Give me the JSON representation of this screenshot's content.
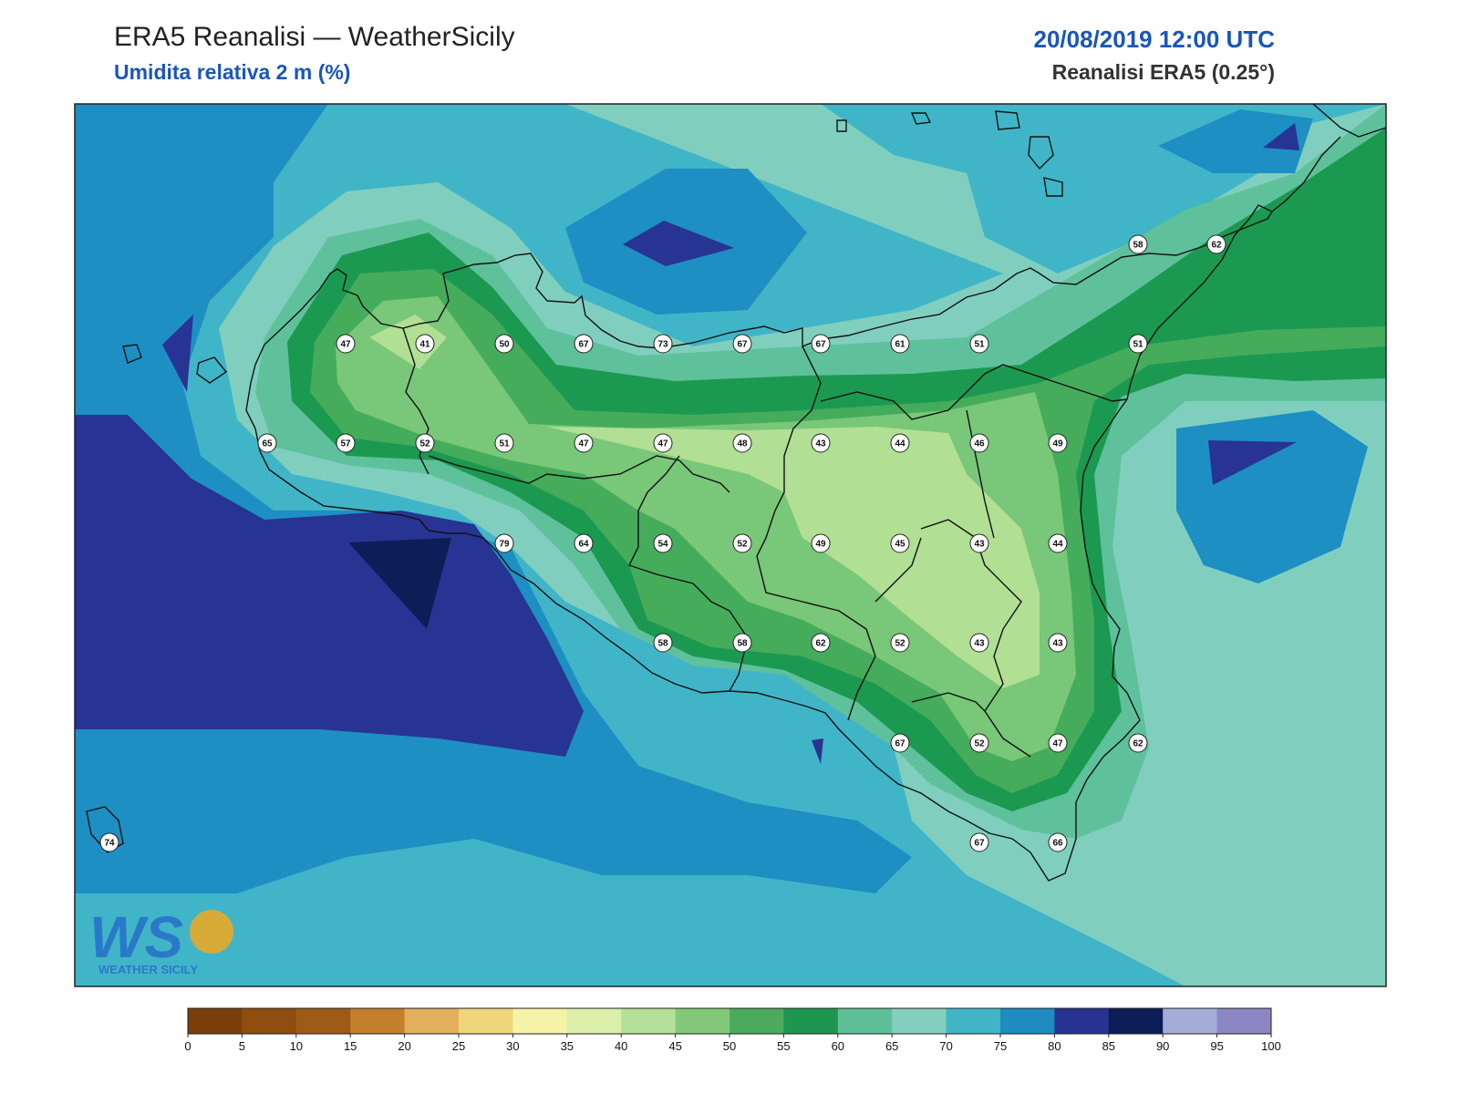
{
  "header": {
    "title": "ERA5 Reanalisi — WeatherSicily",
    "subtitle": "Umidita relativa 2 m (%)",
    "datetime": "20/08/2019 12:00 UTC",
    "source": "Reanalisi ERA5 (0.25°)"
  },
  "logo": {
    "letters": "WS",
    "text": "WEATHER SICILY"
  },
  "colorbar": {
    "ticks": [
      "0",
      "5",
      "10",
      "15",
      "20",
      "25",
      "30",
      "35",
      "40",
      "45",
      "50",
      "55",
      "60",
      "65",
      "70",
      "75",
      "80",
      "85",
      "90",
      "95",
      "100"
    ],
    "colors": [
      "#7a3f0a",
      "#8f4d0f",
      "#9e5a17",
      "#c47f2c",
      "#e0b05c",
      "#f0d67a",
      "#f5f3a8",
      "#dcefab",
      "#b5e09a",
      "#84c97a",
      "#4caa5c",
      "#1e9650",
      "#5fbf98",
      "#83cfbd",
      "#41b5c6",
      "#1e8cc0",
      "#263393",
      "#0b1c57",
      "#a3add8",
      "#8c86c2"
    ]
  },
  "map_colors": {
    "c45": "#b1df94",
    "c50": "#79c779",
    "c55": "#45ac5c",
    "c60": "#1c9950",
    "c65": "#5ec19c",
    "c70": "#80cfbe",
    "c75": "#41b5c8",
    "c80": "#1d8fc3",
    "c85": "#273494",
    "c90": "#0b1e58",
    "coast": "#111111"
  },
  "stations": [
    {
      "v": "47"
    },
    {
      "v": "41"
    },
    {
      "v": "50"
    },
    {
      "v": "67"
    },
    {
      "v": "73"
    },
    {
      "v": "67"
    },
    {
      "v": "67"
    },
    {
      "v": "61"
    },
    {
      "v": "51"
    },
    {
      "v": "51"
    },
    {
      "v": "65"
    },
    {
      "v": "57"
    },
    {
      "v": "52"
    },
    {
      "v": "51"
    },
    {
      "v": "47"
    },
    {
      "v": "47"
    },
    {
      "v": "48"
    },
    {
      "v": "43"
    },
    {
      "v": "44"
    },
    {
      "v": "46"
    },
    {
      "v": "49"
    },
    {
      "v": "79"
    },
    {
      "v": "64"
    },
    {
      "v": "54"
    },
    {
      "v": "52"
    },
    {
      "v": "49"
    },
    {
      "v": "45"
    },
    {
      "v": "43"
    },
    {
      "v": "44"
    },
    {
      "v": "58"
    },
    {
      "v": "58"
    },
    {
      "v": "62"
    },
    {
      "v": "52"
    },
    {
      "v": "43"
    },
    {
      "v": "43"
    },
    {
      "v": "67"
    },
    {
      "v": "52"
    },
    {
      "v": "47"
    },
    {
      "v": "62"
    },
    {
      "v": "67"
    },
    {
      "v": "66"
    },
    {
      "v": "58"
    },
    {
      "v": "62"
    },
    {
      "v": "74"
    }
  ]
}
